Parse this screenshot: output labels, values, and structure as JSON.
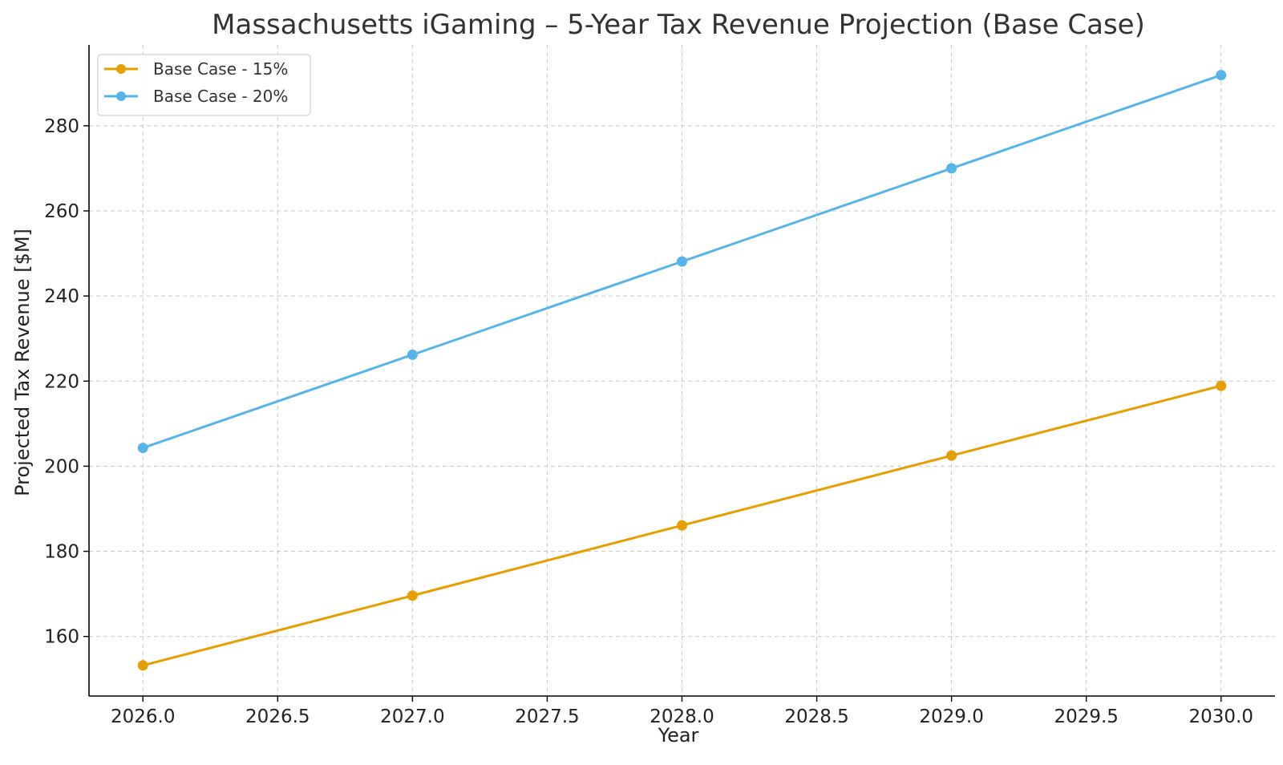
{
  "chart_data": {
    "type": "line",
    "title": "Massachusetts iGaming – 5-Year Tax Revenue Projection (Base Case)",
    "xlabel": "Year",
    "ylabel": "Projected Tax Revenue [$M]",
    "xlim": [
      2025.8,
      2030.2
    ],
    "ylim": [
      146,
      299
    ],
    "xticks": [
      2026.0,
      2026.5,
      2027.0,
      2027.5,
      2028.0,
      2028.5,
      2029.0,
      2029.5,
      2030.0
    ],
    "xtick_labels": [
      "2026.0",
      "2026.5",
      "2027.0",
      "2027.5",
      "2028.0",
      "2028.5",
      "2029.0",
      "2029.5",
      "2030.0"
    ],
    "yticks": [
      160,
      180,
      200,
      220,
      240,
      260,
      280
    ],
    "ytick_labels": [
      "160",
      "180",
      "200",
      "220",
      "240",
      "260",
      "280"
    ],
    "grid": true,
    "legend_position": "top-left",
    "x": [
      2026,
      2027,
      2028,
      2029,
      2030
    ],
    "series": [
      {
        "name": "Base Case - 15%",
        "color": "#E69F00",
        "values": [
          153.2,
          169.6,
          186.1,
          202.5,
          218.9
        ]
      },
      {
        "name": "Base Case - 20%",
        "color": "#56B4E9",
        "values": [
          204.3,
          226.2,
          248.1,
          270.0,
          291.9
        ]
      }
    ]
  }
}
